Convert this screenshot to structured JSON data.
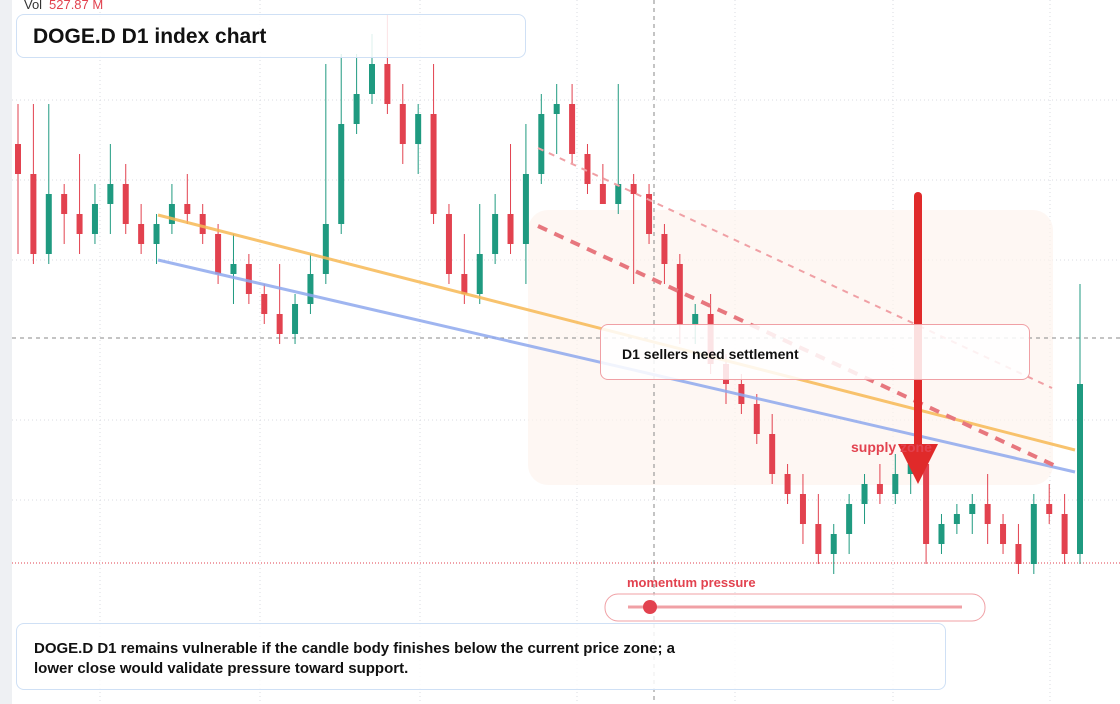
{
  "header": {
    "vol_label": "Vol",
    "vol_value": "527.87 M",
    "title": "DOGE.D D1 index chart"
  },
  "annotations": {
    "callout": "D1 sellers need settlement",
    "zone": "supply zone",
    "slider": "momentum pressure"
  },
  "description": "DOGE.D D1 remains vulnerable if the candle body finishes below the current price zone; a lower close would validate pressure toward support.",
  "chart_data": {
    "type": "candlestick",
    "ylim": [
      0,
      704
    ],
    "up_color": "#1f9a80",
    "down_color": "#e2424f",
    "open": [
      560,
      530,
      450,
      510,
      490,
      470,
      500,
      520,
      480,
      460,
      480,
      500,
      490,
      470,
      430,
      440,
      410,
      390,
      370,
      400,
      430,
      480,
      580,
      610,
      640,
      600,
      560,
      590,
      490,
      430,
      410,
      450,
      490,
      460,
      530,
      590,
      600,
      550,
      520,
      500,
      520,
      510,
      470,
      440,
      380,
      390,
      340,
      320,
      300,
      270,
      230,
      210,
      180,
      150,
      170,
      200,
      220,
      210,
      230,
      240,
      160,
      180,
      190,
      200,
      180,
      160,
      140,
      200,
      190,
      150
    ],
    "high": [
      600,
      600,
      600,
      520,
      550,
      520,
      560,
      540,
      500,
      490,
      520,
      530,
      500,
      480,
      470,
      450,
      420,
      440,
      410,
      450,
      640,
      650,
      650,
      670,
      690,
      620,
      600,
      640,
      500,
      470,
      500,
      510,
      560,
      580,
      610,
      620,
      620,
      560,
      540,
      620,
      530,
      520,
      480,
      450,
      400,
      410,
      350,
      330,
      310,
      290,
      240,
      230,
      210,
      180,
      210,
      230,
      240,
      250,
      260,
      250,
      190,
      200,
      210,
      230,
      190,
      180,
      210,
      220,
      210,
      420
    ],
    "low": [
      450,
      440,
      440,
      460,
      450,
      460,
      470,
      470,
      450,
      440,
      470,
      480,
      460,
      420,
      400,
      400,
      380,
      360,
      360,
      390,
      420,
      470,
      570,
      600,
      590,
      540,
      530,
      480,
      420,
      400,
      400,
      440,
      450,
      420,
      520,
      550,
      540,
      510,
      500,
      490,
      420,
      460,
      420,
      360,
      360,
      330,
      300,
      290,
      260,
      220,
      200,
      160,
      140,
      130,
      150,
      180,
      200,
      200,
      210,
      140,
      150,
      170,
      170,
      160,
      150,
      130,
      130,
      180,
      140,
      140
    ],
    "close": [
      530,
      450,
      510,
      490,
      470,
      500,
      520,
      480,
      460,
      480,
      500,
      490,
      470,
      430,
      440,
      410,
      390,
      370,
      400,
      430,
      480,
      580,
      610,
      640,
      600,
      560,
      590,
      490,
      430,
      410,
      450,
      490,
      460,
      530,
      590,
      600,
      550,
      520,
      500,
      520,
      510,
      470,
      440,
      380,
      390,
      340,
      320,
      300,
      270,
      230,
      210,
      180,
      150,
      170,
      200,
      220,
      210,
      230,
      240,
      160,
      180,
      190,
      200,
      180,
      160,
      140,
      200,
      190,
      150,
      320
    ]
  }
}
